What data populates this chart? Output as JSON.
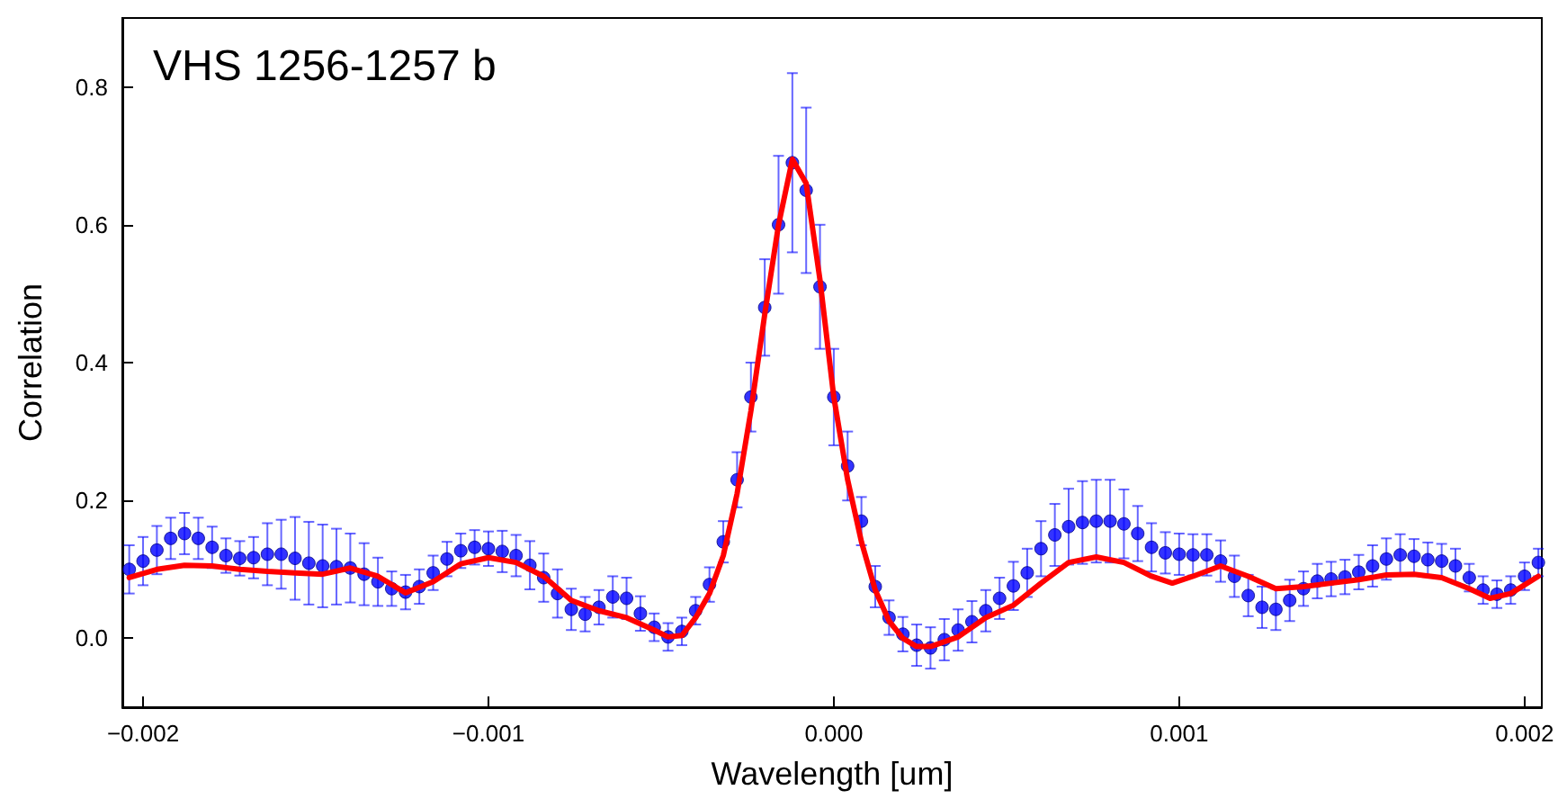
{
  "chart_data": {
    "type": "scatter",
    "title": "VHS 1256-1257 b",
    "xlabel": "Wavelength [um]",
    "ylabel": "Correlation",
    "xlim": [
      -0.00206,
      0.00205
    ],
    "ylim": [
      -0.1,
      0.9
    ],
    "xticks": [
      {
        "value": -0.002,
        "label": "−0.002"
      },
      {
        "value": -0.001,
        "label": "−0.001"
      },
      {
        "value": 0,
        "label": "0.000"
      },
      {
        "value": 0.001,
        "label": "0.001"
      },
      {
        "value": 0.002,
        "label": "0.002"
      }
    ],
    "yticks": [
      {
        "value": 0,
        "label": "0.0"
      },
      {
        "value": 0.2,
        "label": "0.2"
      },
      {
        "value": 0.4,
        "label": "0.4"
      },
      {
        "value": 0.6,
        "label": "0.6"
      },
      {
        "value": 0.8,
        "label": "0.8"
      }
    ],
    "grid": false,
    "series": [
      {
        "color": "#0000ff",
        "marker": "circle",
        "x": [
          -0.00204,
          -0.002,
          -0.00196,
          -0.00192,
          -0.00188,
          -0.00184,
          -0.0018,
          -0.00176,
          -0.00172,
          -0.00168,
          -0.00164,
          -0.0016,
          -0.00156,
          -0.00152,
          -0.00148,
          -0.00144,
          -0.0014,
          -0.00136,
          -0.00132,
          -0.00128,
          -0.00124,
          -0.0012,
          -0.00116,
          -0.00112,
          -0.00108,
          -0.00104,
          -0.001,
          -0.00096,
          -0.00092,
          -0.00088,
          -0.00084,
          -0.0008,
          -0.00076,
          -0.00072,
          -0.00068,
          -0.00064,
          -0.0006,
          -0.00056,
          -0.00052,
          -0.00048,
          -0.00044,
          -0.0004,
          -0.00036,
          -0.00032,
          -0.00028,
          -0.00024,
          -0.0002,
          -0.00016,
          -0.00012,
          -8e-05,
          -4e-05,
          0,
          4e-05,
          8e-05,
          0.00012,
          0.00016,
          0.0002,
          0.00024,
          0.00028,
          0.00032,
          0.00036,
          0.0004,
          0.00044,
          0.00048,
          0.00052,
          0.00056,
          0.0006,
          0.00064,
          0.00068,
          0.00072,
          0.00076,
          0.0008,
          0.00084,
          0.00088,
          0.00092,
          0.00096,
          0.001,
          0.00104,
          0.00108,
          0.00112,
          0.00116,
          0.0012,
          0.00124,
          0.00128,
          0.00132,
          0.00136,
          0.0014,
          0.00144,
          0.00148,
          0.00152,
          0.00156,
          0.0016,
          0.00164,
          0.00168,
          0.00172,
          0.00176,
          0.0018,
          0.00184,
          0.00188,
          0.00192,
          0.00196,
          0.002,
          0.00204
        ],
        "values": [
          0.1,
          0.112,
          0.128,
          0.145,
          0.152,
          0.145,
          0.132,
          0.12,
          0.116,
          0.117,
          0.122,
          0.122,
          0.116,
          0.109,
          0.105,
          0.104,
          0.102,
          0.093,
          0.082,
          0.072,
          0.067,
          0.075,
          0.095,
          0.115,
          0.127,
          0.132,
          0.13,
          0.126,
          0.12,
          0.106,
          0.088,
          0.065,
          0.042,
          0.035,
          0.045,
          0.06,
          0.058,
          0.036,
          0.016,
          0.002,
          0.01,
          0.04,
          0.078,
          0.14,
          0.23,
          0.35,
          0.48,
          0.6,
          0.69,
          0.65,
          0.51,
          0.35,
          0.25,
          0.17,
          0.075,
          0.03,
          0.006,
          -0.01,
          -0.014,
          -0.002,
          0.012,
          0.024,
          0.04,
          0.058,
          0.076,
          0.095,
          0.13,
          0.15,
          0.162,
          0.168,
          0.17,
          0.17,
          0.166,
          0.152,
          0.132,
          0.124,
          0.122,
          0.121,
          0.121,
          0.112,
          0.09,
          0.062,
          0.045,
          0.042,
          0.055,
          0.072,
          0.083,
          0.086,
          0.089,
          0.096,
          0.105,
          0.115,
          0.121,
          0.119,
          0.114,
          0.112,
          0.105,
          0.088,
          0.07,
          0.064,
          0.07,
          0.09,
          0.11
        ],
        "errors": [
          0.035,
          0.035,
          0.035,
          0.03,
          0.03,
          0.03,
          0.03,
          0.025,
          0.025,
          0.03,
          0.045,
          0.05,
          0.06,
          0.06,
          0.06,
          0.055,
          0.05,
          0.045,
          0.035,
          0.025,
          0.025,
          0.025,
          0.025,
          0.025,
          0.025,
          0.025,
          0.025,
          0.03,
          0.03,
          0.035,
          0.035,
          0.035,
          0.03,
          0.025,
          0.025,
          0.03,
          0.03,
          0.025,
          0.02,
          0.02,
          0.02,
          0.02,
          0.025,
          0.03,
          0.04,
          0.05,
          0.07,
          0.1,
          0.13,
          0.12,
          0.09,
          0.07,
          0.05,
          0.035,
          0.03,
          0.025,
          0.025,
          0.03,
          0.03,
          0.03,
          0.03,
          0.03,
          0.03,
          0.03,
          0.035,
          0.035,
          0.04,
          0.045,
          0.055,
          0.06,
          0.06,
          0.06,
          0.05,
          0.04,
          0.035,
          0.03,
          0.03,
          0.03,
          0.03,
          0.03,
          0.03,
          0.03,
          0.03,
          0.03,
          0.03,
          0.025,
          0.025,
          0.025,
          0.025,
          0.025,
          0.03,
          0.03,
          0.03,
          0.025,
          0.025,
          0.025,
          0.025,
          0.02,
          0.02,
          0.02,
          0.02,
          0.02,
          0.02
        ]
      },
      {
        "type": "line",
        "color": "#ff0000",
        "marker": "none",
        "line_style": "solid",
        "x": [
          -0.00204,
          -0.00196,
          -0.00188,
          -0.0018,
          -0.00172,
          -0.00164,
          -0.00156,
          -0.00148,
          -0.0014,
          -0.00132,
          -0.00124,
          -0.00116,
          -0.00108,
          -0.001,
          -0.00092,
          -0.00084,
          -0.00076,
          -0.00068,
          -0.0006,
          -0.00052,
          -0.00048,
          -0.00044,
          -0.0004,
          -0.00036,
          -0.00032,
          -0.00028,
          -0.00024,
          -0.0002,
          -0.00016,
          -0.00012,
          -8e-05,
          -4e-05,
          0,
          4e-05,
          8e-05,
          0.00012,
          0.00016,
          0.0002,
          0.00024,
          0.00028,
          0.00036,
          0.00044,
          0.00052,
          0.0006,
          0.00068,
          0.00076,
          0.00084,
          0.00092,
          0.00098,
          0.00104,
          0.00112,
          0.0012,
          0.00128,
          0.00136,
          0.00144,
          0.00152,
          0.0016,
          0.00168,
          0.00176,
          0.00184,
          0.0019,
          0.00196,
          0.00204
        ],
        "values": [
          0.088,
          0.1,
          0.106,
          0.105,
          0.1,
          0.097,
          0.095,
          0.093,
          0.102,
          0.09,
          0.066,
          0.082,
          0.108,
          0.117,
          0.11,
          0.09,
          0.055,
          0.04,
          0.03,
          0.012,
          0.002,
          0.004,
          0.03,
          0.065,
          0.12,
          0.21,
          0.33,
          0.47,
          0.6,
          0.695,
          0.66,
          0.52,
          0.35,
          0.23,
          0.14,
          0.07,
          0.025,
          0,
          -0.012,
          -0.012,
          0.002,
          0.03,
          0.048,
          0.08,
          0.11,
          0.118,
          0.11,
          0.09,
          0.08,
          0.09,
          0.105,
          0.09,
          0.072,
          0.075,
          0.08,
          0.085,
          0.092,
          0.093,
          0.088,
          0.072,
          0.058,
          0.065,
          0.09
        ]
      }
    ]
  }
}
